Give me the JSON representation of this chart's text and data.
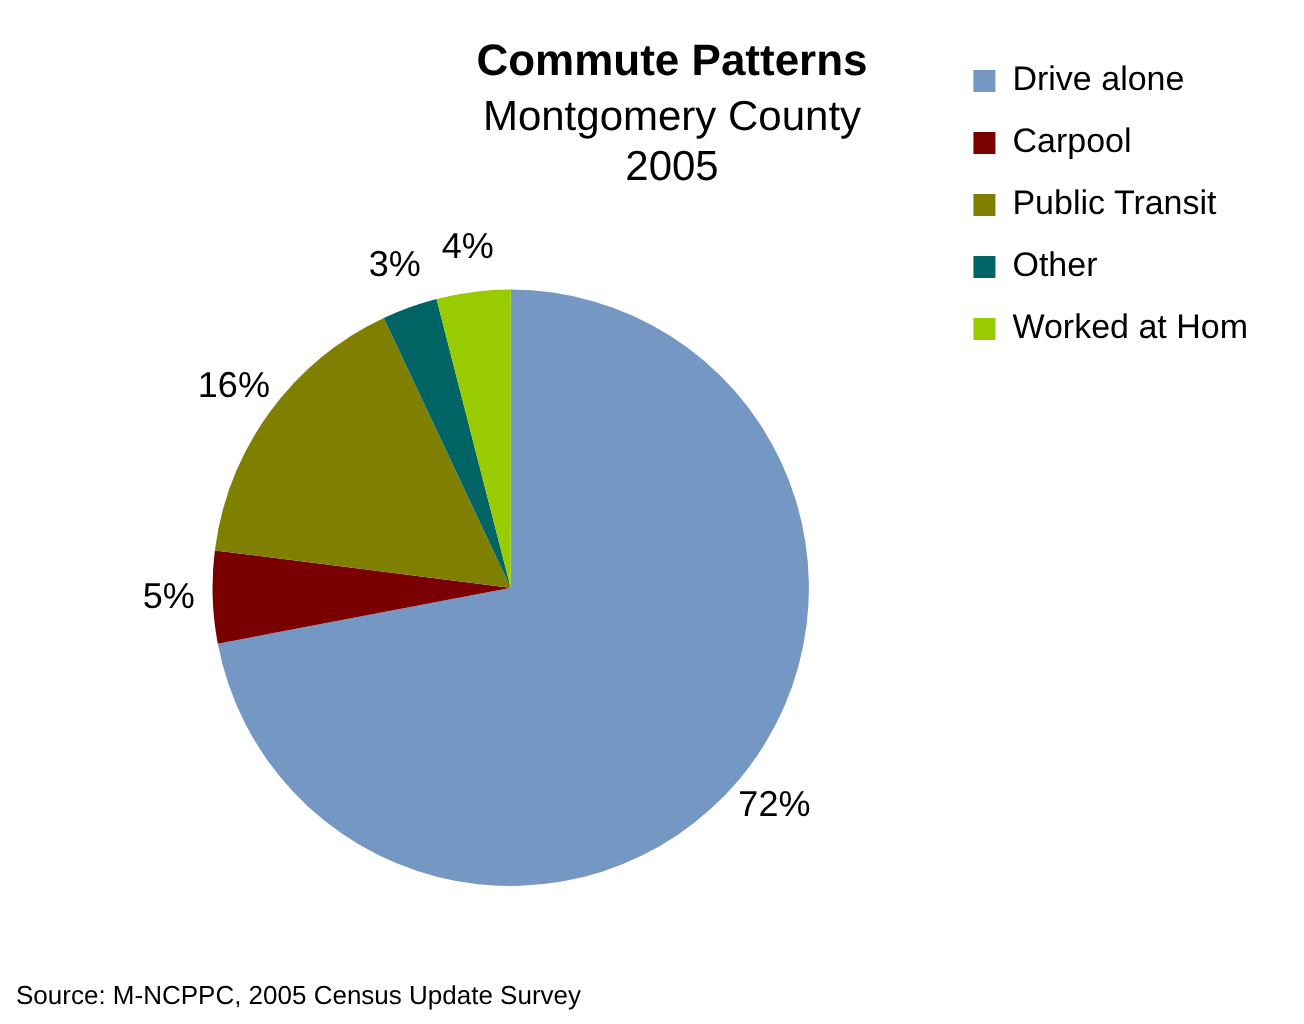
{
  "chart_data": {
    "type": "pie",
    "title": "Commute Patterns",
    "subtitle": "Montgomery County\n2005",
    "categories": [
      "Drive alone",
      "Carpool",
      "Public Transit",
      "Other",
      "Worked at Hom"
    ],
    "values": [
      72,
      5,
      16,
      3,
      4
    ],
    "colors": [
      "#7497c4",
      "#7a0000",
      "#7f7f00",
      "#006464",
      "#99cc00"
    ],
    "value_labels": [
      "72%",
      "5%",
      "16%",
      "3%",
      "4%"
    ],
    "legend": "right",
    "annotations": [
      "Source: M-NCPPC, 2005 Census Update Survey"
    ]
  }
}
